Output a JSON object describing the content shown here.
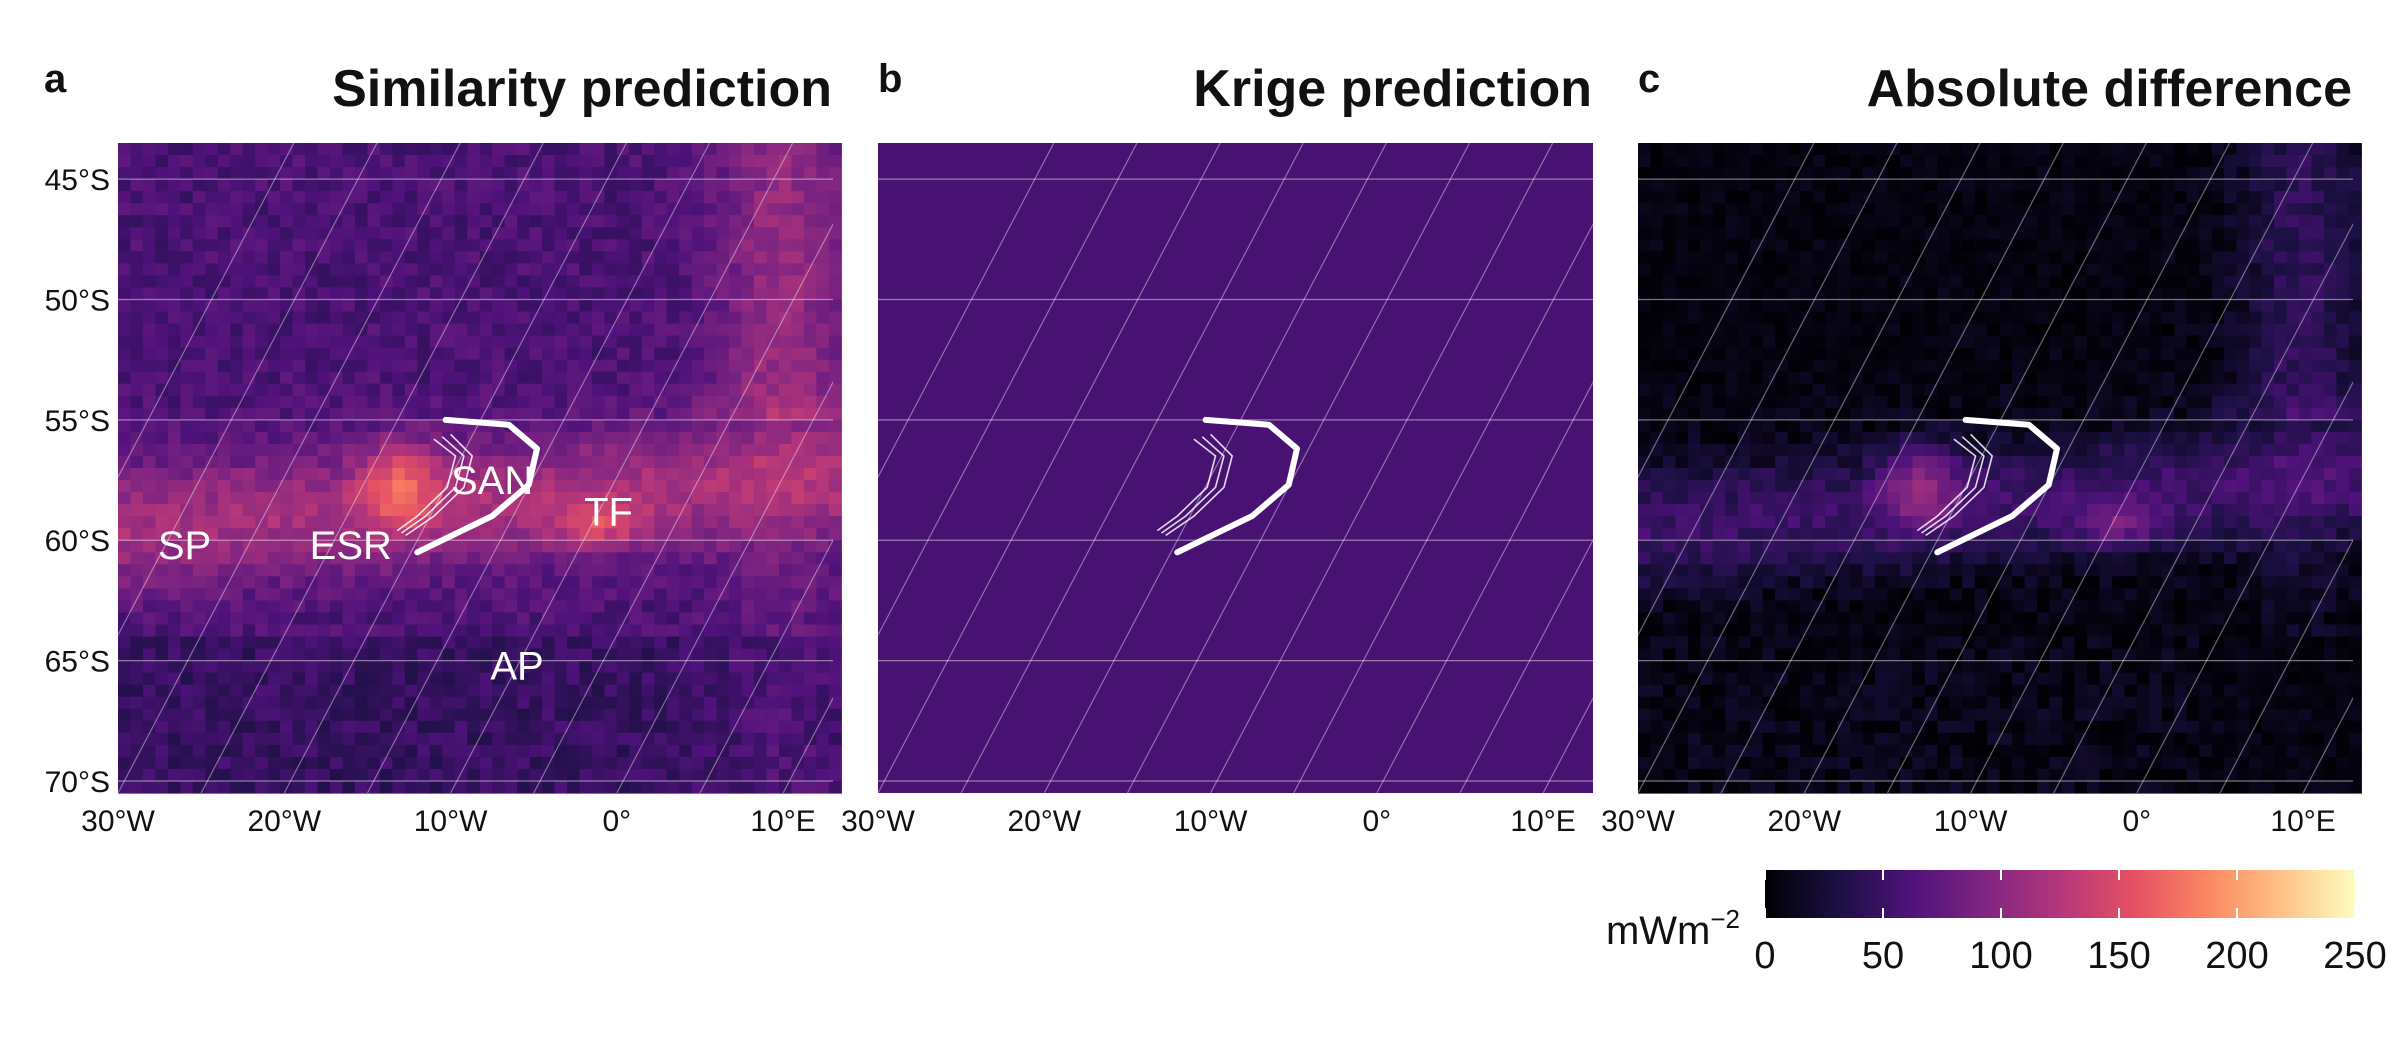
{
  "panels": [
    {
      "letter": "a",
      "title": "Similarity prediction",
      "mode": "similarity",
      "labels": [
        {
          "text": "SAN",
          "lon": -7.5,
          "lat": -57.5
        },
        {
          "text": "TF",
          "lon": -0.5,
          "lat": -58.8
        },
        {
          "text": "SP",
          "lon": -26,
          "lat": -60.2
        },
        {
          "text": "ESR",
          "lon": -16,
          "lat": -60.2
        },
        {
          "text": "AP",
          "lon": -6,
          "lat": -65.2
        }
      ]
    },
    {
      "letter": "b",
      "title": "Krige prediction",
      "mode": "krige",
      "labels": []
    },
    {
      "letter": "c",
      "title": "Absolute difference",
      "mode": "difference",
      "labels": []
    }
  ],
  "axes": {
    "lat_ticks": [
      "45°S",
      "50°S",
      "55°S",
      "60°S",
      "65°S",
      "70°S"
    ],
    "lat_values": [
      -45,
      -50,
      -55,
      -60,
      -65,
      -70
    ],
    "lon_ticks": [
      "30°W",
      "20°W",
      "10°W",
      "0°",
      "10°E"
    ],
    "lon_values": [
      -30,
      -20,
      -10,
      0,
      10
    ],
    "lon_range": [
      -30,
      13
    ],
    "lat_range": [
      -70.5,
      -43.5
    ]
  },
  "colorbar": {
    "unit": "mWm",
    "unit_exponent": "−2",
    "ticks": [
      "0",
      "50",
      "100",
      "150",
      "200",
      "250"
    ],
    "min": 0,
    "max": 250,
    "colormap": "magma",
    "colors": [
      "#000004",
      "#1c1044",
      "#4f127b",
      "#812581",
      "#b5367a",
      "#e55064",
      "#fb8761",
      "#fec287",
      "#fcfdbf"
    ]
  },
  "map_data": {
    "krige_value": 58,
    "plate_boundary": "South American–Antarctic plate boundary (South Sandwich arc)"
  }
}
